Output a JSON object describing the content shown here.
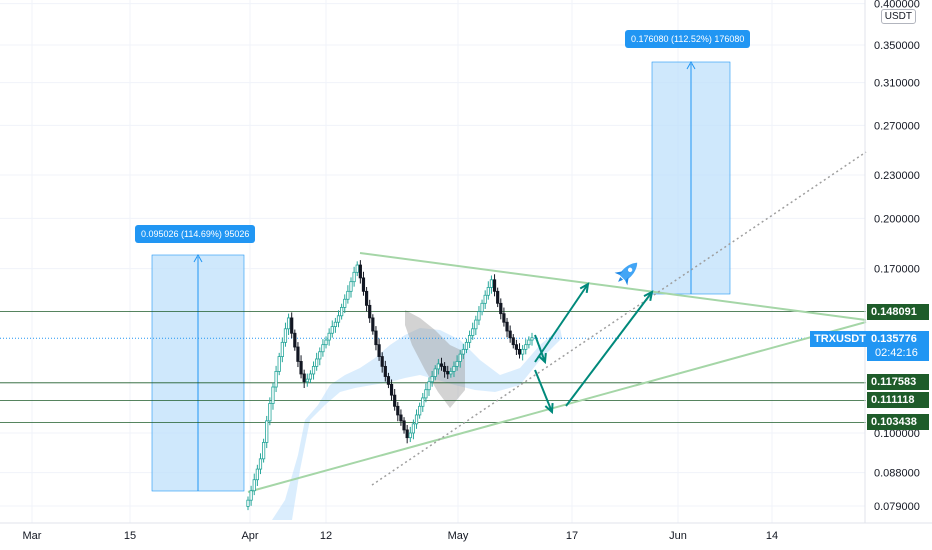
{
  "chart_data": {
    "type": "candlestick",
    "symbol": "TRXUSDT",
    "quote_currency": "USDT",
    "y_scale": "log",
    "y_ticks": [
      "0.400000",
      "0.350000",
      "0.310000",
      "0.270000",
      "0.230000",
      "0.200000",
      "0.170000",
      "0.100000",
      "0.088000",
      "0.079000"
    ],
    "x_ticks": [
      "Mar",
      "15",
      "Apr",
      "12",
      "May",
      "17",
      "Jun",
      "14"
    ],
    "last_price": "0.135776",
    "countdown": "02:42:16",
    "price_levels": [
      {
        "label": "0.148091",
        "value": 0.148091,
        "color": "#1e5c2a"
      },
      {
        "label": "0.117583",
        "value": 0.117583,
        "color": "#1e5c2a"
      },
      {
        "label": "0.111118",
        "value": 0.111118,
        "color": "#1e5c2a"
      },
      {
        "label": "0.103438",
        "value": 0.103438,
        "color": "#1e5c2a"
      }
    ],
    "measurements": [
      {
        "label": "0.095026 (114.69%) 95026"
      },
      {
        "label": "0.176080 (112.52%) 176080"
      }
    ],
    "candles_close": [
      0.0805,
      0.083,
      0.086,
      0.089,
      0.092,
      0.097,
      0.104,
      0.11,
      0.116,
      0.122,
      0.128,
      0.134,
      0.14,
      0.145,
      0.138,
      0.132,
      0.126,
      0.121,
      0.118,
      0.119,
      0.121,
      0.124,
      0.127,
      0.13,
      0.133,
      0.135,
      0.138,
      0.141,
      0.143,
      0.146,
      0.15,
      0.154,
      0.158,
      0.163,
      0.168,
      0.172,
      0.165,
      0.158,
      0.151,
      0.145,
      0.139,
      0.133,
      0.128,
      0.124,
      0.12,
      0.117,
      0.113,
      0.109,
      0.106,
      0.104,
      0.101,
      0.0985,
      0.1,
      0.103,
      0.106,
      0.109,
      0.112,
      0.115,
      0.118,
      0.12,
      0.123,
      0.125,
      0.124,
      0.122,
      0.121,
      0.122,
      0.124,
      0.126,
      0.129,
      0.131,
      0.134,
      0.137,
      0.14,
      0.144,
      0.148,
      0.152,
      0.156,
      0.16,
      0.164,
      0.158,
      0.152,
      0.147,
      0.143,
      0.139,
      0.136,
      0.133,
      0.131,
      0.129,
      0.131,
      0.133,
      0.135,
      0.136
    ]
  }
}
